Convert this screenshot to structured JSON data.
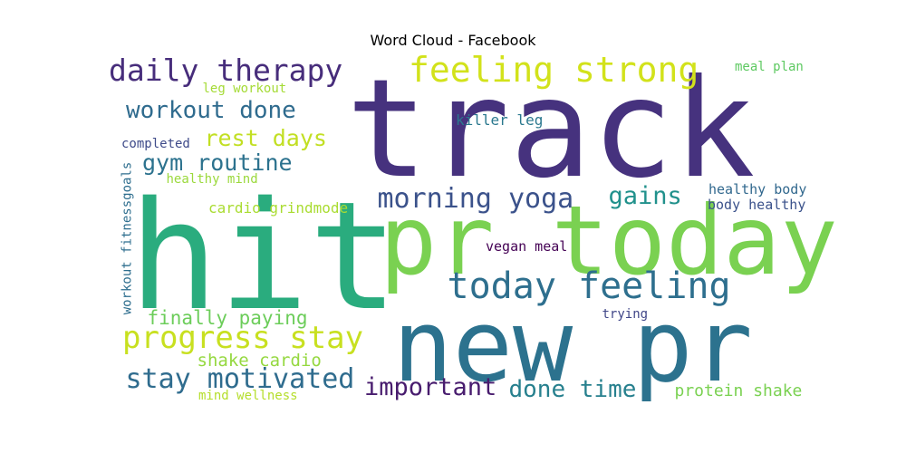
{
  "chart_data": {
    "type": "wordcloud",
    "title": "Word Cloud - Facebook",
    "words": [
      {
        "text": "track",
        "color": "#46327e"
      },
      {
        "text": "hit",
        "color": "#2aac7e"
      },
      {
        "text": "pr today",
        "color": "#7ad151"
      },
      {
        "text": "new pr",
        "color": "#2c728e"
      },
      {
        "text": "feeling strong",
        "color": "#d2e21b"
      },
      {
        "text": "daily therapy",
        "color": "#472d7b"
      },
      {
        "text": "today feeling",
        "color": "#2e6f8e"
      },
      {
        "text": "progress stay",
        "color": "#c8e020"
      },
      {
        "text": "stay motivated",
        "color": "#2f6c8e"
      },
      {
        "text": "workout done",
        "color": "#2f6b8e"
      },
      {
        "text": "morning yoga",
        "color": "#3b528b"
      },
      {
        "text": "gym routine",
        "color": "#2c728e"
      },
      {
        "text": "rest days",
        "color": "#c2df23"
      },
      {
        "text": "gains",
        "color": "#21918c"
      },
      {
        "text": "important",
        "color": "#481c6e"
      },
      {
        "text": "done time",
        "color": "#27808e"
      },
      {
        "text": "finally paying",
        "color": "#6ccd5a"
      },
      {
        "text": "protein shake",
        "color": "#7ad151"
      },
      {
        "text": "shake cardio",
        "color": "#95d840"
      },
      {
        "text": "cardio grindmode",
        "color": "#aadc32"
      },
      {
        "text": "killer leg",
        "color": "#2a788e"
      },
      {
        "text": "healthy body",
        "color": "#31688e"
      },
      {
        "text": "body healthy",
        "color": "#3b528b"
      },
      {
        "text": "vegan meal",
        "color": "#440154"
      },
      {
        "text": "meal plan",
        "color": "#5ec962"
      },
      {
        "text": "leg workout",
        "color": "#a5db36"
      },
      {
        "text": "completed",
        "color": "#3e4a89"
      },
      {
        "text": "healthy mind",
        "color": "#9bd93c"
      },
      {
        "text": "trying",
        "color": "#404688"
      },
      {
        "text": "mind wellness",
        "color": "#b5de2b"
      },
      {
        "text": "workout fitnessgoals",
        "color": "#2e6e8e"
      }
    ]
  }
}
